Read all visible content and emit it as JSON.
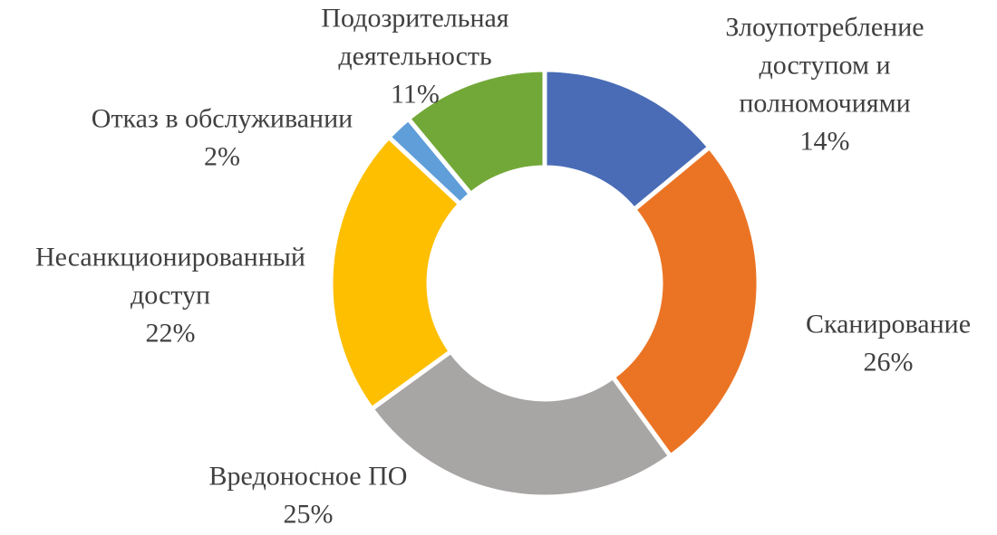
{
  "chart_data": {
    "type": "pie",
    "variant": "donut",
    "start_angle_deg": 0,
    "direction": "clockwise",
    "separator_color": "#ffffff",
    "label_color": "#404040",
    "legend": "none",
    "slices": [
      {
        "label_lines": [
          "Злоупотребление",
          "доступом и",
          "полномочиями"
        ],
        "value": 14,
        "value_label": "14%",
        "color": "#4a6cb6"
      },
      {
        "label_lines": [
          "Сканирование"
        ],
        "value": 26,
        "value_label": "26%",
        "color": "#eb7424"
      },
      {
        "label_lines": [
          "Вредоносное ПО"
        ],
        "value": 25,
        "value_label": "25%",
        "color": "#a8a5a5"
      },
      {
        "label_lines": [
          "Несанкционированный",
          "доступ"
        ],
        "value": 22,
        "value_label": "22%",
        "color": "#fdbf00"
      },
      {
        "label_lines": [
          "Отказ в обслуживании"
        ],
        "value": 2,
        "value_label": "2%",
        "color": "#5f9ed9"
      },
      {
        "label_lines": [
          "Подозрительная",
          "деятельность"
        ],
        "value": 11,
        "value_label": "11%",
        "color": "#72a838"
      }
    ]
  }
}
